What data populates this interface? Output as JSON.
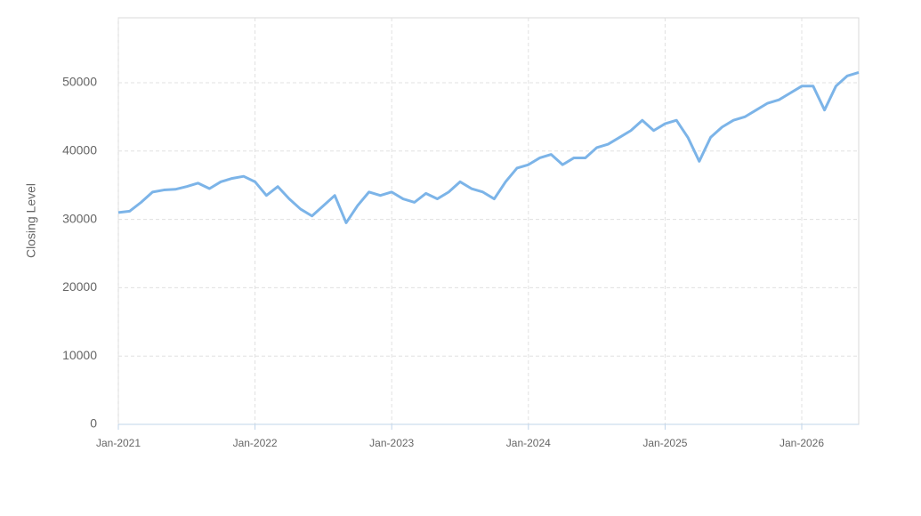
{
  "chart_data": {
    "type": "line",
    "y_label": "Closing Level",
    "x": [
      "2021-01",
      "2021-02",
      "2021-03",
      "2021-04",
      "2021-05",
      "2021-06",
      "2021-07",
      "2021-08",
      "2021-09",
      "2021-10",
      "2021-11",
      "2021-12",
      "2022-01",
      "2022-02",
      "2022-03",
      "2022-04",
      "2022-05",
      "2022-06",
      "2022-07",
      "2022-08",
      "2022-09",
      "2022-10",
      "2022-11",
      "2022-12",
      "2023-01",
      "2023-02",
      "2023-03",
      "2023-04",
      "2023-05",
      "2023-06",
      "2023-07",
      "2023-08",
      "2023-09",
      "2023-10",
      "2023-11",
      "2023-12",
      "2024-01",
      "2024-02",
      "2024-03",
      "2024-04",
      "2024-05",
      "2024-06",
      "2024-07",
      "2024-08",
      "2024-09",
      "2024-10",
      "2024-11",
      "2024-12",
      "2025-01",
      "2025-02",
      "2025-03",
      "2025-04",
      "2025-05",
      "2025-06",
      "2025-07",
      "2025-08",
      "2025-09",
      "2025-10",
      "2025-11",
      "2025-12",
      "2026-01",
      "2026-02",
      "2026-03",
      "2026-04",
      "2026-05",
      "2026-06"
    ],
    "series": [
      {
        "name": "Closing Level",
        "color": "#7cb4e8",
        "values": [
          31000,
          31200,
          32500,
          34000,
          34300,
          34400,
          34800,
          35300,
          34500,
          35500,
          36000,
          36300,
          35500,
          33500,
          34800,
          33000,
          31500,
          30500,
          32000,
          33500,
          29500,
          32000,
          34000,
          33500,
          34000,
          33000,
          32500,
          33800,
          33000,
          34000,
          35500,
          34500,
          34000,
          33000,
          35500,
          37500,
          38000,
          39000,
          39500,
          38000,
          39000,
          39000,
          40500,
          41000,
          42000,
          43000,
          44500,
          43000,
          44000,
          44500,
          42000,
          38500,
          42000,
          43500,
          44500,
          45000,
          46000,
          47000,
          47500,
          48500,
          49500,
          49500,
          46000,
          49500,
          51000,
          51500
        ]
      }
    ],
    "xlim": [
      "2021-01",
      "2026-06"
    ],
    "xticks": [
      {
        "value": "2021-01",
        "label": "Jan-2021"
      },
      {
        "value": "2022-01",
        "label": "Jan-2022"
      },
      {
        "value": "2023-01",
        "label": "Jan-2023"
      },
      {
        "value": "2024-01",
        "label": "Jan-2024"
      },
      {
        "value": "2025-01",
        "label": "Jan-2025"
      },
      {
        "value": "2026-01",
        "label": "Jan-2026"
      }
    ],
    "ylim": [
      0,
      59500
    ],
    "yticks": [
      0,
      10000,
      20000,
      30000,
      40000,
      50000
    ],
    "grid": true
  }
}
